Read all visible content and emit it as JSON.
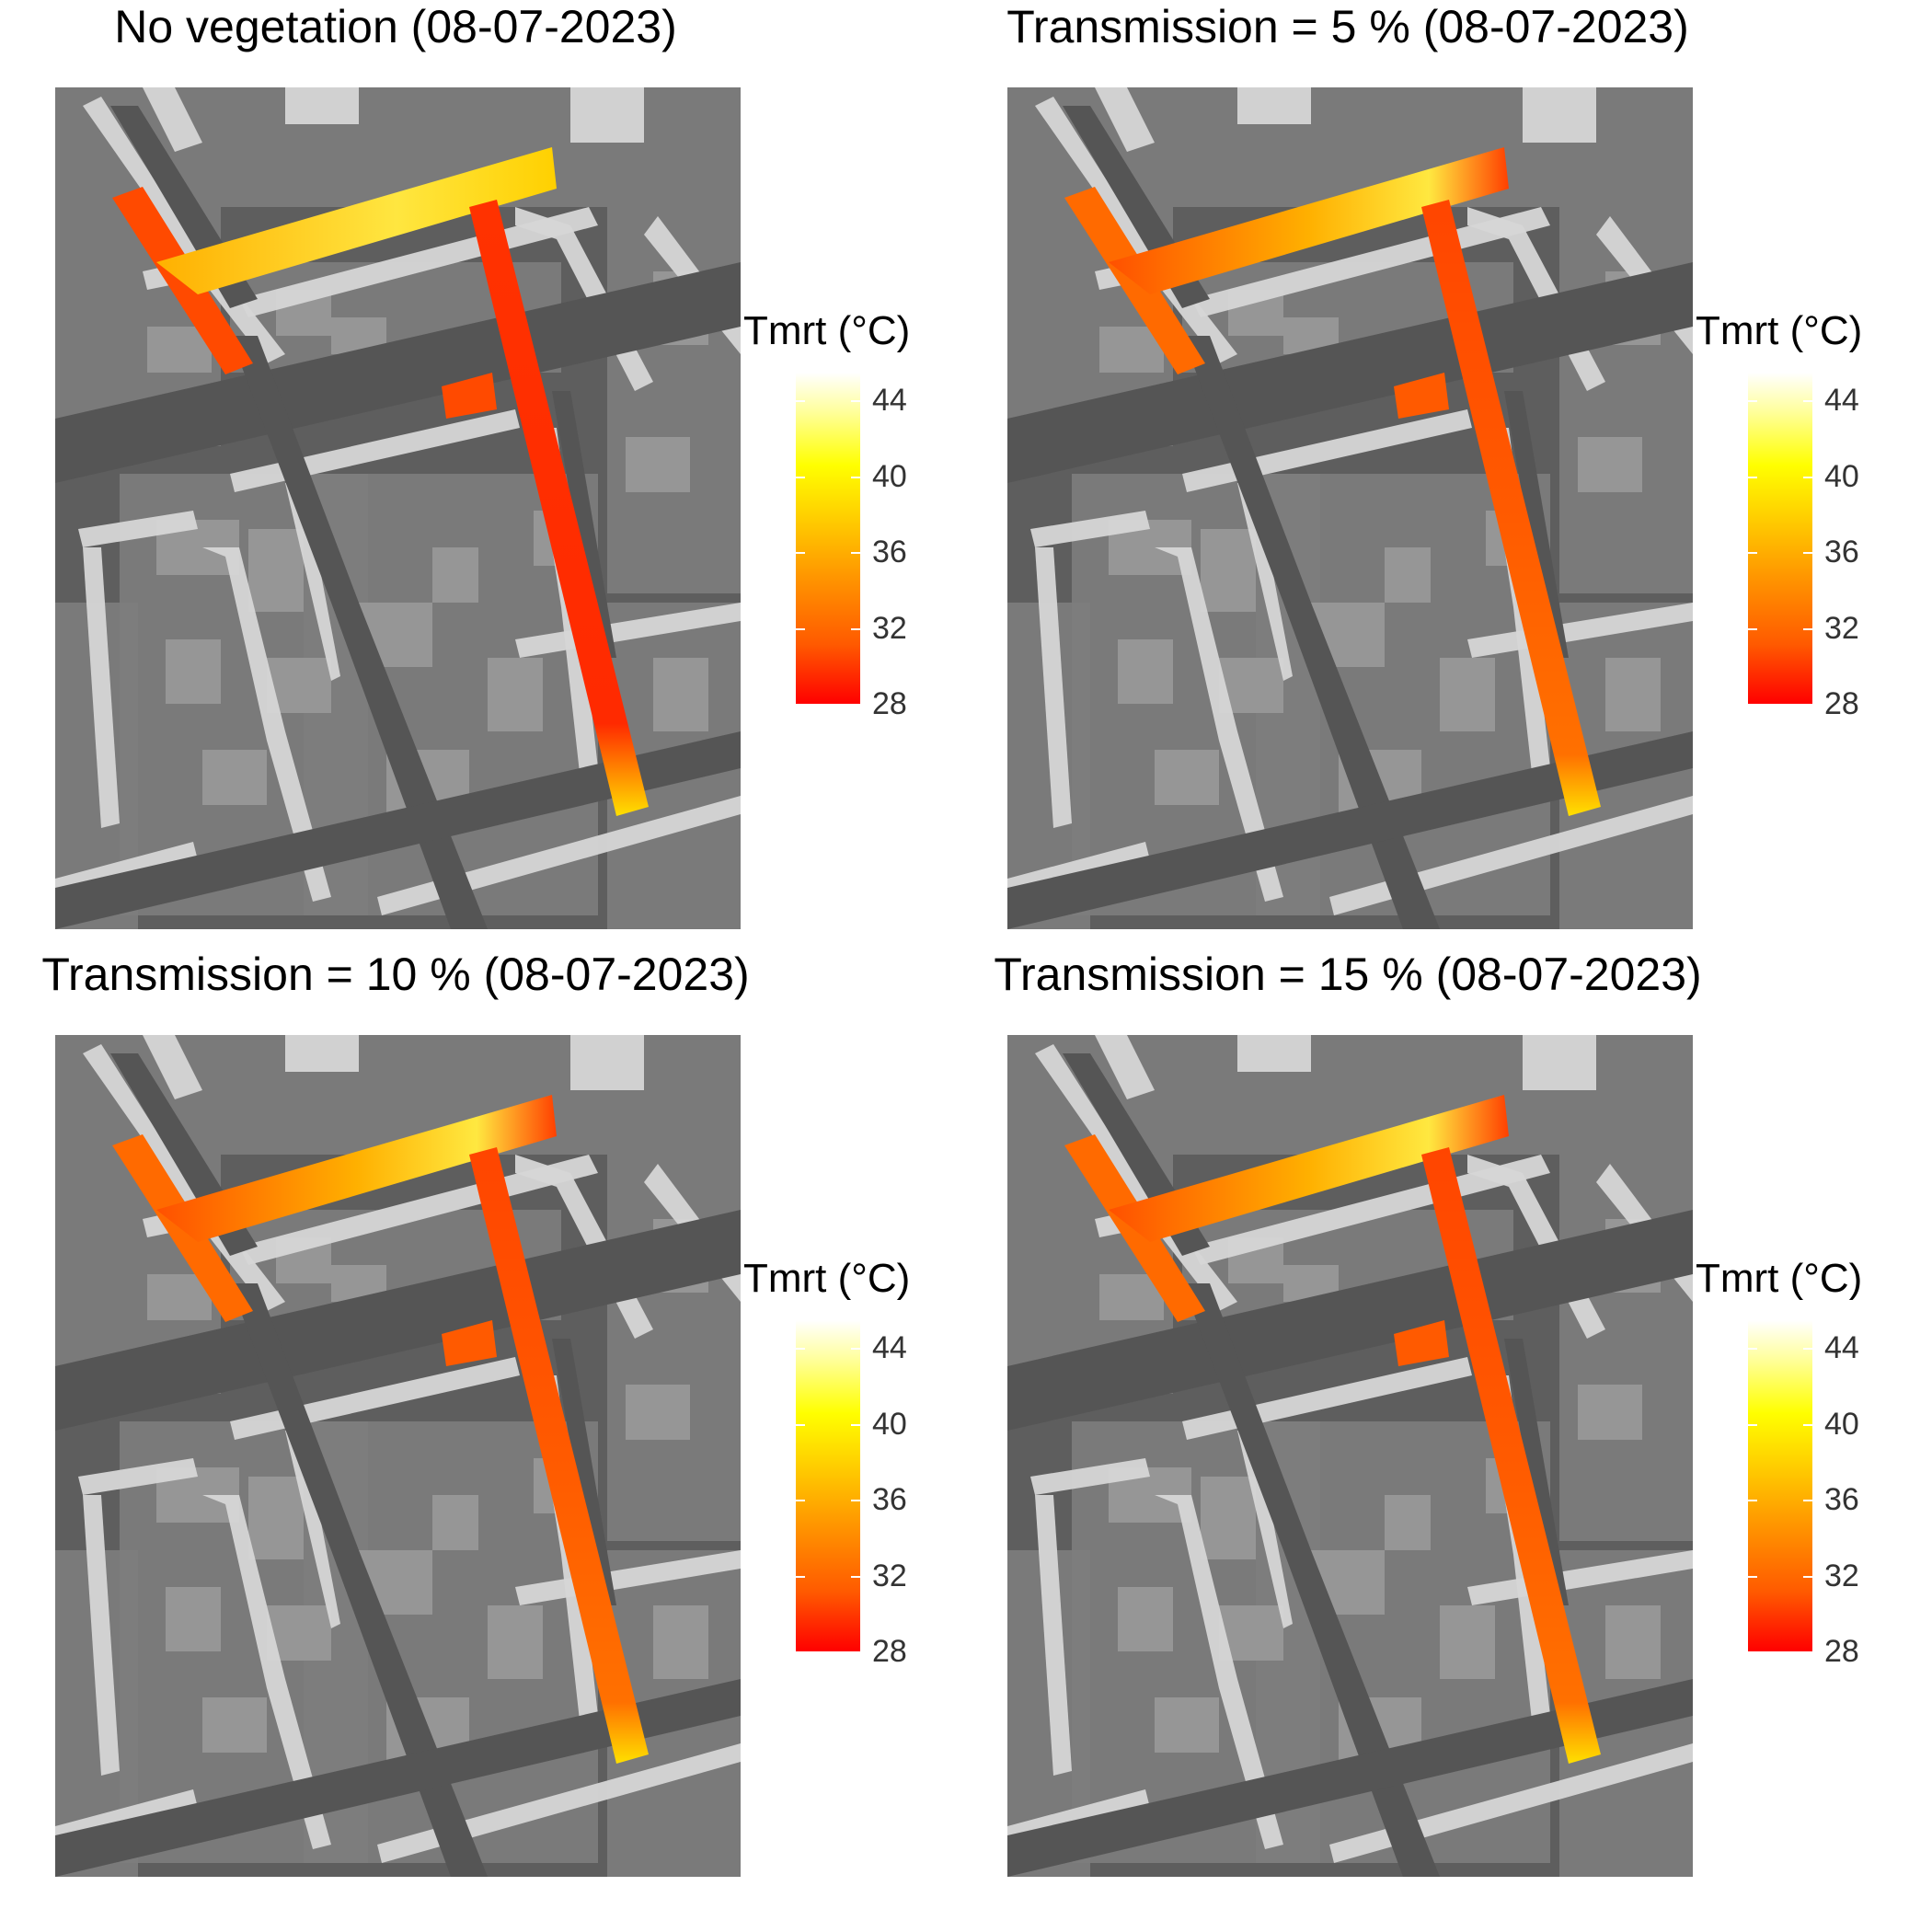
{
  "panels": [
    {
      "title": "No vegetation (08-07-2023)"
    },
    {
      "title": "Transmission = 5 % (08-07-2023)"
    },
    {
      "title": "Transmission = 10 % (08-07-2023)"
    },
    {
      "title": "Transmission = 15 % (08-07-2023)"
    }
  ],
  "legend": {
    "title": "Tmrt (°C)",
    "ticks": [
      "44",
      "40",
      "36",
      "32",
      "28"
    ],
    "min": 28,
    "max": 44,
    "colors": [
      "#ff0000",
      "#ff5a00",
      "#ff9500",
      "#ffd400",
      "#ffff00",
      "#ffffff"
    ]
  },
  "map_style": {
    "background_gray": "#5f5f5f",
    "block_gray": "#8a8a8a",
    "building_light": "#cfcfcf",
    "road_dark": "#565656",
    "hot_colors": [
      "#ff2a00",
      "#ff6a00",
      "#ffd000"
    ]
  }
}
